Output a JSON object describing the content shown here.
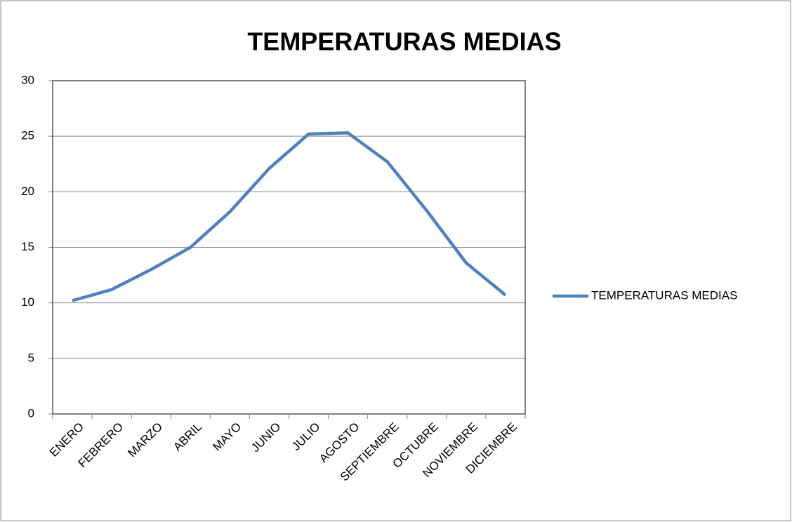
{
  "chart_data": {
    "type": "line",
    "title": "TEMPERATURAS MEDIAS",
    "categories": [
      "ENERO",
      "FEBRERO",
      "MARZO",
      "ABRIL",
      "MAYO",
      "JUNIO",
      "JULIO",
      "AGOSTO",
      "SEPTIEMBRE",
      "OCTUBRE",
      "NOVIEMBRE",
      "DICIEMBRE"
    ],
    "series": [
      {
        "name": "TEMPERATURAS MEDIAS",
        "color": "#4f81bd",
        "values": [
          10.2,
          11.2,
          13.0,
          15.0,
          18.2,
          22.1,
          25.2,
          25.3,
          22.7,
          18.3,
          13.6,
          10.7
        ]
      }
    ],
    "ylim": [
      0,
      30
    ],
    "yticks": [
      0,
      5,
      10,
      15,
      20,
      25,
      30
    ],
    "grid": true,
    "legend": "right"
  }
}
